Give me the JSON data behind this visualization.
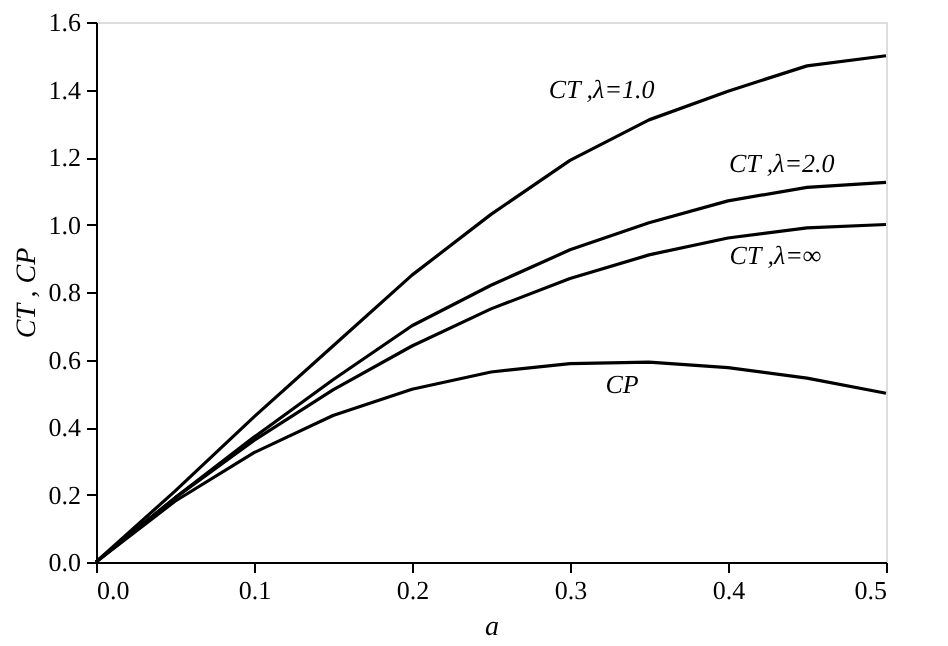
{
  "chart_data": {
    "type": "line",
    "xlabel": "a",
    "ylabel": "CT , CP",
    "x": [
      0,
      0.05,
      0.1,
      0.15,
      0.2,
      0.25,
      0.3,
      0.35,
      0.4,
      0.45,
      0.5
    ],
    "series": [
      {
        "color": "#000000",
        "values": [
          0,
          0.21,
          0.43,
          0.64,
          0.85,
          1.03,
          1.19,
          1.31,
          1.395,
          1.47,
          1.5
        ]
      },
      {
        "color": "#000000",
        "values": [
          0,
          0.19,
          0.37,
          0.54,
          0.7,
          0.82,
          0.925,
          1.005,
          1.07,
          1.11,
          1.125
        ]
      },
      {
        "color": "#000000",
        "values": [
          0,
          0.19,
          0.36,
          0.51,
          0.64,
          0.75,
          0.84,
          0.91,
          0.96,
          0.99,
          1.0
        ]
      },
      {
        "color": "#000000",
        "values": [
          0,
          0.18,
          0.324,
          0.434,
          0.512,
          0.563,
          0.588,
          0.592,
          0.576,
          0.545,
          0.5
        ]
      }
    ],
    "xlim": [
      0,
      0.5
    ],
    "xticks": [
      {
        "value": 0,
        "label": "0.0"
      },
      0.1,
      0.2,
      0.3,
      0.4,
      0.5
    ],
    "ylim": [
      0,
      1.6
    ],
    "yticks": [
      {
        "value": 0,
        "label": "0.0"
      },
      0.2,
      0.4,
      0.6,
      0.8,
      {
        "value": 1,
        "label": "1.0"
      },
      1.2,
      1.4,
      1.6
    ],
    "marker": "none",
    "line_style": "solid",
    "annotations": [
      {
        "text": "CT ,λ=1.0",
        "x": 0.32,
        "y": 1.238
      },
      {
        "text": "CT ,λ=2.0",
        "x": 0.434,
        "y": 1.097
      },
      {
        "text": "CT ,λ=∞",
        "x": 0.43,
        "y": 0.978
      },
      {
        "text": "CP",
        "x": 0.333,
        "y": 0.591
      }
    ]
  }
}
